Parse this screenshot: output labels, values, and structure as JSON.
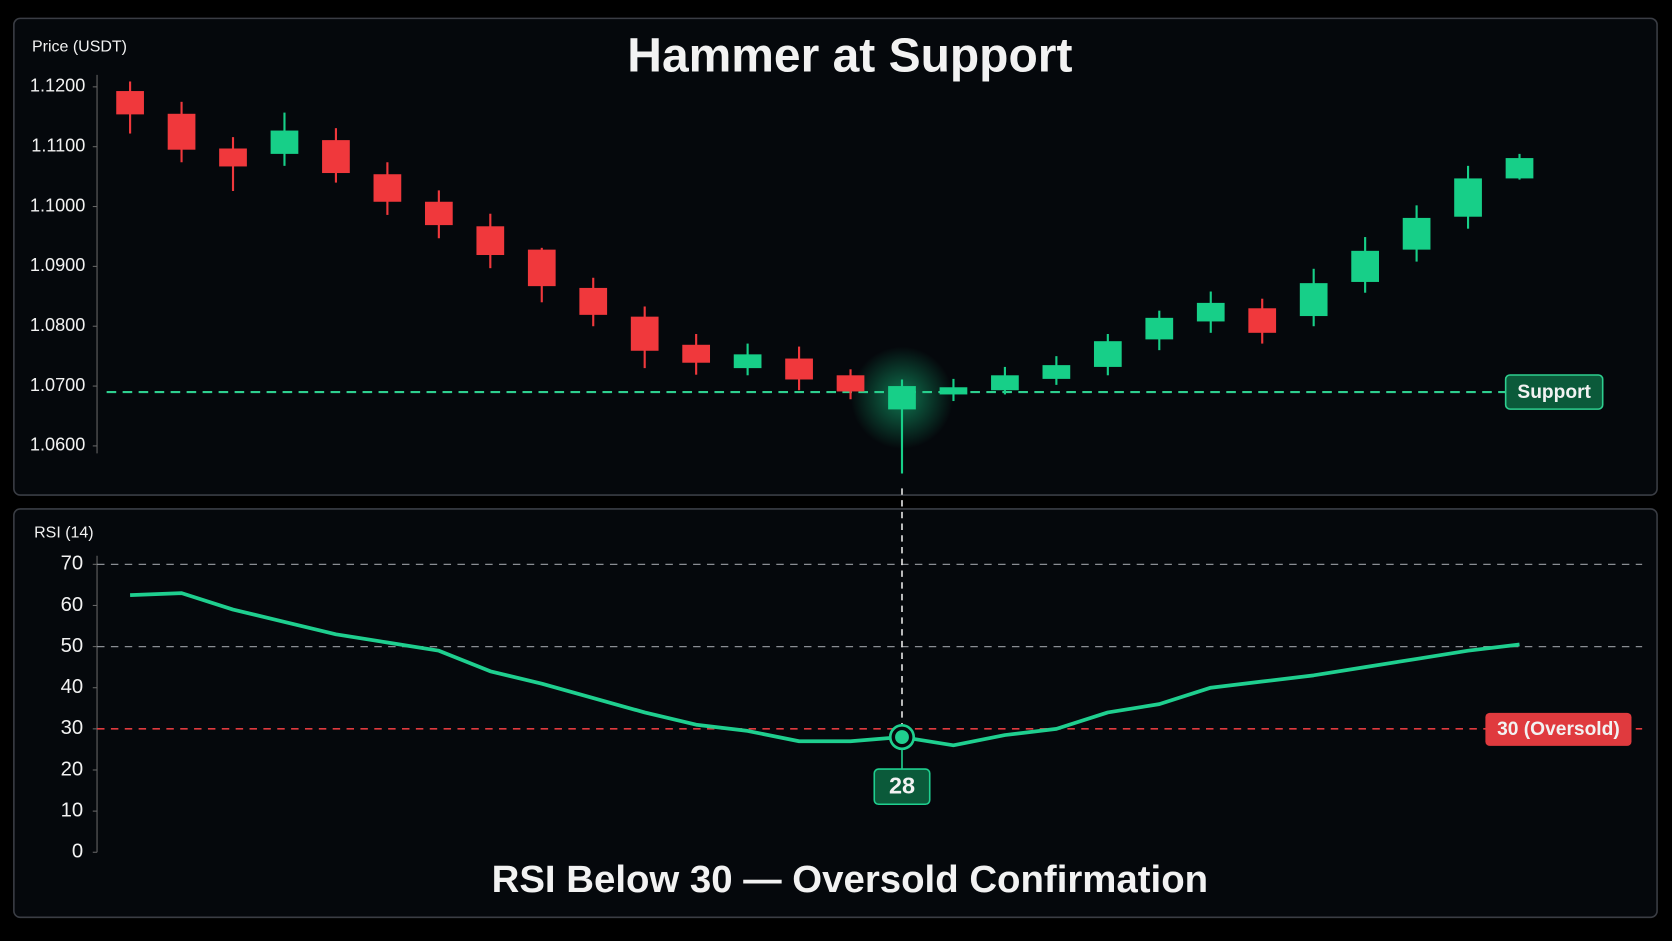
{
  "chart_data": [
    {
      "type": "candlestick",
      "title": "Hammer at Support",
      "y_label": "Price (USDT)",
      "open": [
        1.1193,
        1.1155,
        1.1097,
        1.1088,
        1.1111,
        1.1054,
        1.1008,
        1.0967,
        1.0928,
        1.0864,
        1.0816,
        1.0769,
        1.073,
        1.0746,
        1.0718,
        1.0661,
        1.0686,
        1.0693,
        1.0712,
        1.0732,
        1.0778,
        1.0808,
        1.083,
        1.0817,
        1.0874,
        1.0928,
        1.0983,
        1.1047
      ],
      "high": [
        1.1209,
        1.1175,
        1.1116,
        1.1157,
        1.1131,
        1.1074,
        1.1027,
        1.0988,
        1.0931,
        1.0881,
        1.0833,
        1.0787,
        1.0771,
        1.0766,
        1.0728,
        1.0711,
        1.0712,
        1.0732,
        1.075,
        1.0787,
        1.0826,
        1.0858,
        1.0846,
        1.0896,
        1.0949,
        1.1002,
        1.1068,
        1.1088
      ],
      "low": [
        1.1122,
        1.1074,
        1.1026,
        1.1068,
        1.104,
        1.0986,
        1.0947,
        1.0897,
        1.084,
        1.08,
        1.073,
        1.0719,
        1.0718,
        1.0693,
        1.0678,
        1.0554,
        1.0675,
        1.0686,
        1.0702,
        1.0718,
        1.076,
        1.0789,
        1.0771,
        1.08,
        1.0856,
        1.0908,
        1.0963,
        1.1045
      ],
      "close": [
        1.1154,
        1.1095,
        1.1067,
        1.1127,
        1.1056,
        1.1008,
        1.0969,
        1.0919,
        1.0867,
        1.0819,
        1.0759,
        1.0739,
        1.0753,
        1.0711,
        1.0691,
        1.07,
        1.0698,
        1.0718,
        1.0735,
        1.0775,
        1.0814,
        1.0839,
        1.0789,
        1.0872,
        1.0926,
        1.0981,
        1.1047,
        1.1081
      ],
      "up_color": "#17cf88",
      "down_color": "#f0383c",
      "ylim": [
        1.055,
        1.122
      ],
      "yticks": [
        {
          "value": 1.06,
          "label": "1.0600"
        },
        {
          "value": 1.07,
          "label": "1.0700"
        },
        {
          "value": 1.08,
          "label": "1.0800"
        },
        {
          "value": 1.09,
          "label": "1.0900"
        },
        {
          "value": 1.1,
          "label": "1.1000"
        },
        {
          "value": 1.11,
          "label": "1.1100"
        },
        {
          "value": 1.12,
          "label": "1.1200"
        }
      ],
      "support": {
        "value": 1.069,
        "label": "Support"
      },
      "support_color": "#2ecf8f",
      "highlight_index": 15
    },
    {
      "type": "line",
      "y_label": "RSI (14)",
      "caption": "RSI Below 30 — Oversold Confirmation",
      "values": [
        62.5,
        63,
        59,
        56,
        53,
        51,
        49,
        44,
        41,
        37.5,
        34,
        31,
        29.5,
        27,
        27,
        28,
        26,
        28.5,
        30,
        34,
        36,
        40,
        41.5,
        43,
        45,
        47,
        49,
        50.5
      ],
      "color": "#1fcf8f",
      "ylim": [
        0,
        70
      ],
      "yticks": [
        0,
        10,
        20,
        30,
        40,
        50,
        60,
        70
      ],
      "ref_lines": [
        70,
        50
      ],
      "oversold": {
        "value": 30,
        "label": "30 (Oversold)"
      },
      "oversold_color": "#e03a3e",
      "highlight_index": 15
    }
  ]
}
